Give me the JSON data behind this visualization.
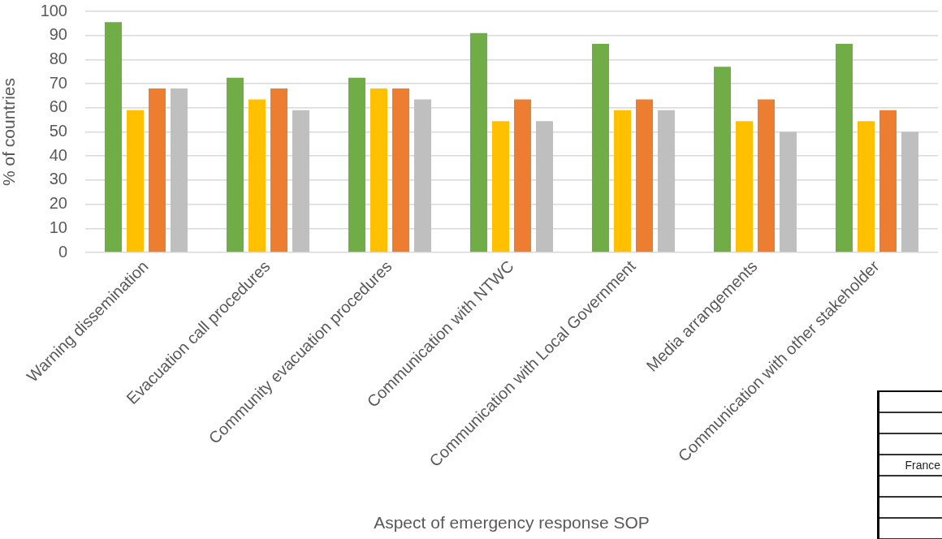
{
  "chart_data": {
    "type": "bar",
    "xlabel": "Aspect of emergency response SOP",
    "ylabel": "% of countries",
    "categories": [
      "Warning dissemination",
      "Evacuation call procedures",
      "Community evacuation procedures",
      "Communication with NTWC",
      "Communication with Local Government",
      "Media arrangements",
      "Communication with other stakeholder"
    ],
    "series": [
      {
        "color": "#70ad47",
        "values": [
          95.5,
          72.5,
          72.5,
          91,
          86.5,
          77,
          86.5
        ]
      },
      {
        "color": "#ffc000",
        "values": [
          59,
          63.5,
          68,
          54.5,
          59,
          54.5,
          54.5
        ]
      },
      {
        "color": "#ed7d31",
        "values": [
          68,
          68,
          68,
          63.5,
          63.5,
          63.5,
          59
        ]
      },
      {
        "color": "#bfbfbf",
        "values": [
          68,
          59,
          63.5,
          54.5,
          59,
          50,
          50
        ]
      }
    ],
    "ylim": [
      0,
      100
    ],
    "yticks": [
      0,
      10,
      20,
      30,
      40,
      50,
      60,
      70,
      80,
      90,
      100
    ],
    "grid": "y",
    "annotations": [
      "France"
    ]
  }
}
